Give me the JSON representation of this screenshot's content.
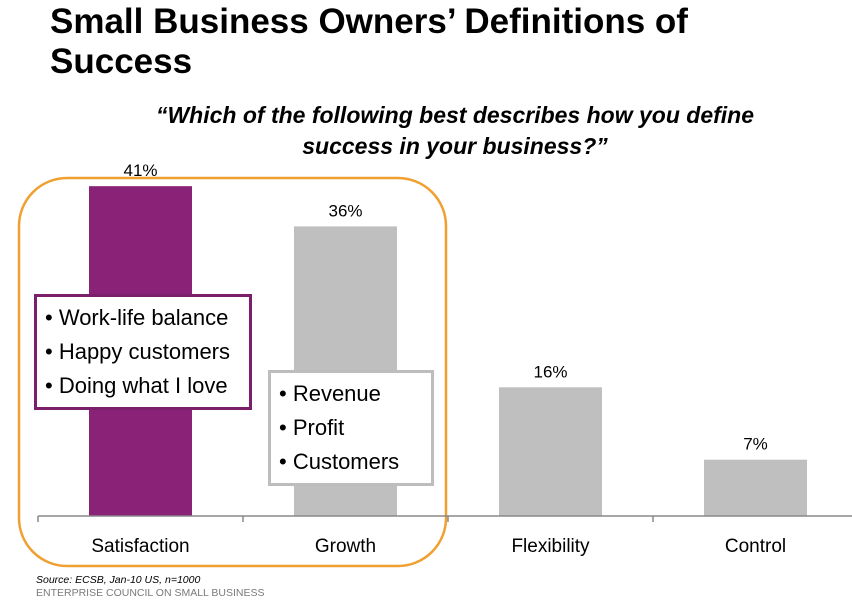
{
  "title_line1": "Small Business Owners’ Definitions of",
  "title_line2": "Success",
  "question_line1": "“Which of the following best describes how you define",
  "question_line2": "success in your business?”",
  "chart_data": {
    "type": "bar",
    "categories": [
      "Satisfaction",
      "Growth",
      "Flexibility",
      "Control"
    ],
    "values": [
      41,
      36,
      16,
      7
    ],
    "data_labels": [
      "41%",
      "36%",
      "16%",
      "7%"
    ],
    "unit": "%",
    "ylim": [
      0,
      45
    ],
    "grid": false,
    "colors": [
      "#8a2277",
      "#bfbfbf",
      "#bfbfbf",
      "#bfbfbf"
    ],
    "highlight_color": "#f0a030"
  },
  "callouts": {
    "satisfaction": [
      "Work-life balance",
      "Happy customers",
      "Doing what I love"
    ],
    "growth": [
      "Revenue",
      "Profit",
      "Customers"
    ]
  },
  "source": "Source: ECSB, Jan-10 US, n=1000",
  "organization": "ENTERPRISE COUNCIL ON SMALL BUSINESS"
}
